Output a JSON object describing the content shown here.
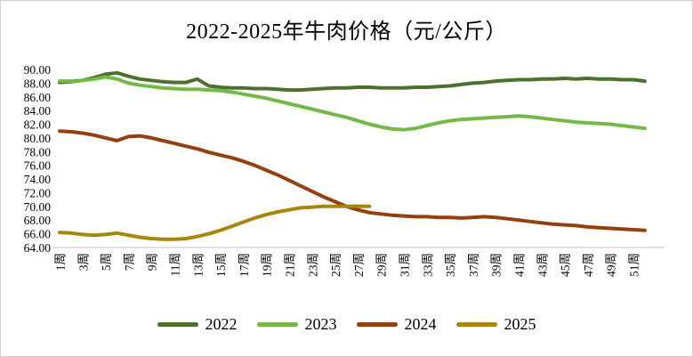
{
  "title": "2022-2025年牛肉价格（元/公斤）",
  "chart_data": {
    "type": "line",
    "title": "2022-2025年牛肉价格（元/公斤）",
    "xlabel": "",
    "ylabel": "",
    "x_unit": "周",
    "x_start_week": 1,
    "x_step": 1,
    "xlim_weeks": [
      1,
      52
    ],
    "ylim": [
      64,
      90
    ],
    "grid": false,
    "legend_position": "bottom",
    "axis_color": "#d9d9d9",
    "text_color": "#000000",
    "y_ticks": [
      90,
      88,
      86,
      84,
      82,
      80,
      78,
      76,
      74,
      72,
      70,
      68,
      66,
      64
    ],
    "y_tick_labels": [
      "90.00",
      "88.00",
      "86.00",
      "84.00",
      "82.00",
      "80.00",
      "78.00",
      "76.00",
      "74.00",
      "72.00",
      "70.00",
      "68.00",
      "66.00",
      "64.00"
    ],
    "x_tick_labels": [
      "1周",
      "3周",
      "5周",
      "7周",
      "9周",
      "11周",
      "13周",
      "15周",
      "17周",
      "19周",
      "21周",
      "23周",
      "25周",
      "27周",
      "29周",
      "31周",
      "33周",
      "35周",
      "37周",
      "39周",
      "41周",
      "43周",
      "45周",
      "47周",
      "49周",
      "51周"
    ],
    "series": [
      {
        "name": "2022",
        "color": "#4c712e",
        "start_week": 1,
        "values": [
          88.1,
          88.2,
          88.4,
          88.8,
          89.3,
          89.5,
          89.0,
          88.6,
          88.4,
          88.2,
          88.1,
          88.1,
          88.6,
          87.6,
          87.4,
          87.3,
          87.3,
          87.2,
          87.2,
          87.1,
          87.0,
          87.0,
          87.1,
          87.2,
          87.3,
          87.3,
          87.4,
          87.4,
          87.3,
          87.3,
          87.3,
          87.4,
          87.4,
          87.5,
          87.6,
          87.8,
          88.0,
          88.1,
          88.3,
          88.4,
          88.5,
          88.5,
          88.6,
          88.6,
          88.7,
          88.6,
          88.7,
          88.6,
          88.6,
          88.5,
          88.5,
          88.3
        ]
      },
      {
        "name": "2023",
        "color": "#74b848",
        "start_week": 1,
        "values": [
          88.3,
          88.3,
          88.4,
          88.6,
          88.9,
          88.6,
          88.0,
          87.7,
          87.5,
          87.3,
          87.2,
          87.1,
          87.1,
          87.0,
          86.9,
          86.7,
          86.4,
          86.1,
          85.8,
          85.4,
          85.0,
          84.6,
          84.2,
          83.8,
          83.4,
          83.0,
          82.5,
          82.0,
          81.6,
          81.3,
          81.2,
          81.4,
          81.8,
          82.2,
          82.5,
          82.7,
          82.8,
          82.9,
          83.0,
          83.1,
          83.2,
          83.1,
          82.9,
          82.7,
          82.5,
          82.3,
          82.2,
          82.1,
          82.0,
          81.8,
          81.6,
          81.4
        ]
      },
      {
        "name": "2024",
        "color": "#933f0e",
        "start_week": 1,
        "values": [
          81.0,
          80.9,
          80.7,
          80.4,
          80.0,
          79.6,
          80.2,
          80.3,
          80.0,
          79.6,
          79.2,
          78.8,
          78.4,
          77.9,
          77.5,
          77.1,
          76.6,
          76.0,
          75.3,
          74.6,
          73.8,
          73.0,
          72.2,
          71.4,
          70.7,
          70.0,
          69.5,
          69.1,
          68.9,
          68.7,
          68.6,
          68.5,
          68.5,
          68.4,
          68.4,
          68.3,
          68.4,
          68.5,
          68.4,
          68.2,
          68.0,
          67.8,
          67.6,
          67.4,
          67.3,
          67.2,
          67.0,
          66.9,
          66.8,
          66.7,
          66.6,
          66.5
        ]
      },
      {
        "name": "2025",
        "color": "#a8860d",
        "start_week": 1,
        "values": [
          66.2,
          66.1,
          65.9,
          65.8,
          65.9,
          66.1,
          65.8,
          65.5,
          65.3,
          65.2,
          65.2,
          65.3,
          65.6,
          66.0,
          66.5,
          67.1,
          67.7,
          68.3,
          68.8,
          69.2,
          69.5,
          69.8,
          69.9,
          70.0,
          70.0,
          70.0,
          70.0,
          70.0
        ]
      }
    ]
  }
}
